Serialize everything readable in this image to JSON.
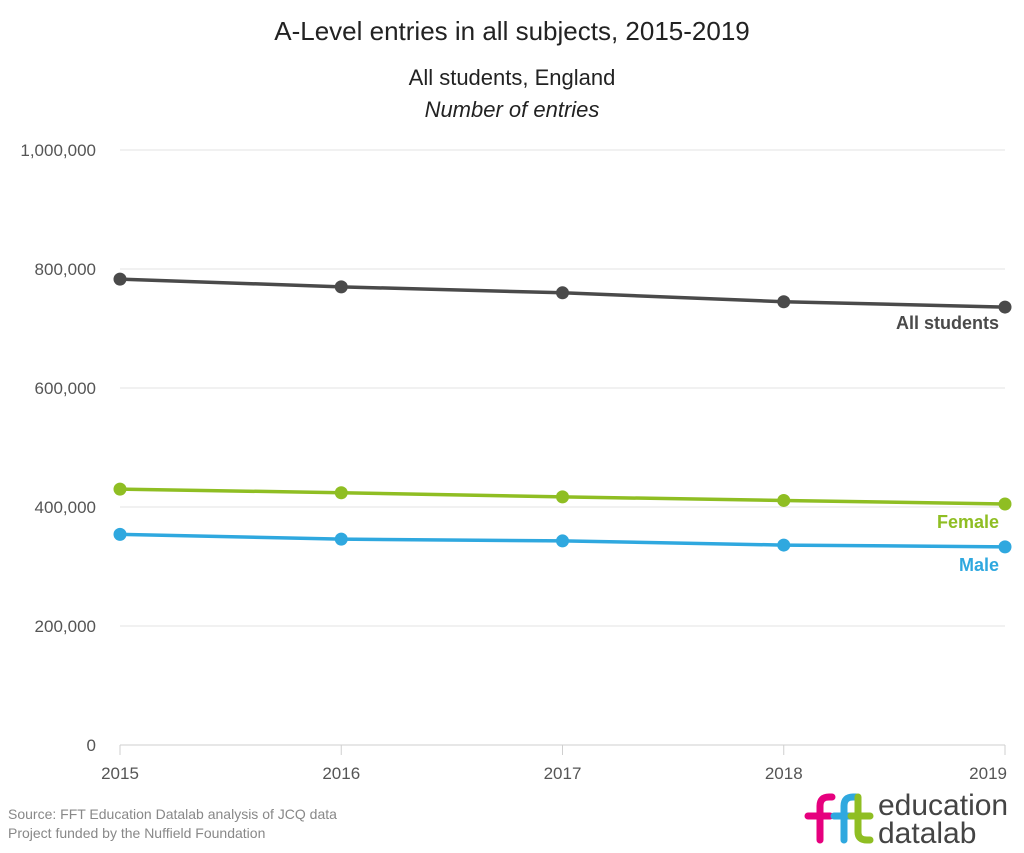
{
  "chart_data": {
    "type": "line",
    "title": "A-Level entries in all subjects, 2015-2019",
    "subtitle": "All students, England",
    "subtitle2": "Number of entries",
    "x": [
      "2015",
      "2016",
      "2017",
      "2018",
      "2019"
    ],
    "ylim": [
      0,
      1000000
    ],
    "yticks": [
      {
        "value": 0,
        "label": "0"
      },
      {
        "value": 200000,
        "label": "200,000"
      },
      {
        "value": 400000,
        "label": "400,000"
      },
      {
        "value": 600000,
        "label": "600,000"
      },
      {
        "value": 800000,
        "label": "800,000"
      },
      {
        "value": 1000000,
        "label": "1,000,000"
      }
    ],
    "grid": true,
    "series": [
      {
        "name": "All students",
        "color": "#4a4a4a",
        "values": [
          783000,
          770000,
          760000,
          745000,
          736000
        ]
      },
      {
        "name": "Female",
        "color": "#8fbe23",
        "values": [
          430000,
          424000,
          417000,
          411000,
          405000
        ]
      },
      {
        "name": "Male",
        "color": "#2fa8df",
        "values": [
          354000,
          346000,
          343000,
          336000,
          333000
        ]
      }
    ]
  },
  "footer": {
    "source": "Source: FFT Education Datalab analysis of JCQ data",
    "funding": "Project funded by the Nuffield Foundation"
  },
  "logo": {
    "line1": "education",
    "line2_a": "data",
    "line2_b": "lab",
    "colors": {
      "f1": "#e6007e",
      "f2": "#2fa8df",
      "t": "#8fbe23"
    }
  }
}
